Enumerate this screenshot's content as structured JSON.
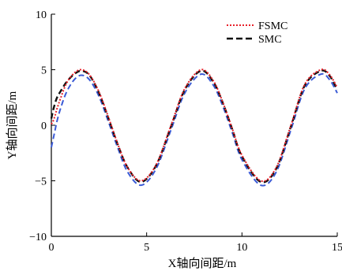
{
  "chart_data": {
    "type": "line",
    "title": "",
    "xlabel": "X轴向间距/m",
    "ylabel": "Y轴向间距/m",
    "xlim": [
      0,
      15
    ],
    "ylim": [
      -10,
      10
    ],
    "xticks": [
      0,
      5,
      10,
      15
    ],
    "yticks": [
      -10,
      -5,
      0,
      5,
      10
    ],
    "xtick_labels": [
      "0",
      "5",
      "10",
      "15"
    ],
    "ytick_labels": [
      "−10",
      "−5",
      "0",
      "5",
      "10"
    ],
    "grid": false,
    "legend_position": "top-right",
    "reference": {
      "function": "sine",
      "amplitude": 5,
      "period": 6.28
    },
    "series": [
      {
        "name": "FSMC",
        "color": "#e8202a",
        "style": "dotted",
        "x": [
          0,
          0.1,
          0.2,
          0.3,
          0.5,
          0.8,
          1.2,
          1.57,
          2.0,
          2.5,
          3.0,
          3.5,
          4.0,
          4.71,
          5.5,
          6.28,
          7.0,
          7.85,
          8.5,
          9.0,
          9.5,
          10.0,
          10.99,
          11.8,
          12.57,
          13.3,
          14.14,
          14.6,
          15.0
        ],
        "y": [
          0.1,
          0.4,
          0.9,
          1.5,
          2.5,
          3.8,
          4.7,
          5.0,
          4.55,
          3.0,
          0.7,
          -1.75,
          -3.8,
          -5.0,
          -3.55,
          0.0,
          3.3,
          5.0,
          4.0,
          2.05,
          -0.35,
          -2.7,
          -5.0,
          -3.8,
          0.0,
          3.7,
          5.0,
          4.55,
          3.4
        ]
      },
      {
        "name": "SMC",
        "color": "#111111",
        "style": "dashed",
        "x": [
          0,
          0.1,
          0.2,
          0.3,
          0.5,
          0.8,
          1.2,
          1.57,
          2.0,
          2.5,
          3.0,
          3.5,
          4.0,
          4.71,
          5.5,
          6.28,
          7.0,
          7.85,
          8.5,
          9.0,
          9.5,
          10.0,
          10.99,
          11.8,
          12.57,
          13.3,
          14.14,
          14.6,
          15.0
        ],
        "y": [
          0.6,
          1.4,
          2.0,
          2.5,
          3.1,
          3.9,
          4.6,
          4.9,
          4.5,
          2.9,
          0.6,
          -1.8,
          -3.8,
          -5.1,
          -3.6,
          -0.1,
          3.2,
          4.9,
          3.9,
          2.0,
          -0.4,
          -2.8,
          -5.1,
          -3.9,
          -0.1,
          3.6,
          4.9,
          4.45,
          3.2
        ]
      },
      {
        "name": "",
        "color": "#3b5bd6",
        "style": "dashed",
        "x": [
          0,
          0.1,
          0.2,
          0.3,
          0.5,
          0.8,
          1.2,
          1.57,
          2.0,
          2.5,
          3.0,
          3.5,
          4.0,
          4.71,
          5.5,
          6.28,
          7.0,
          7.85,
          8.5,
          9.0,
          9.5,
          10.0,
          10.99,
          11.8,
          12.57,
          13.3,
          14.14,
          14.6,
          15.0
        ],
        "y": [
          -2.0,
          -1.2,
          -0.4,
          0.4,
          1.6,
          3.0,
          4.1,
          4.5,
          4.1,
          2.6,
          0.3,
          -2.1,
          -4.2,
          -5.4,
          -3.9,
          -0.4,
          2.9,
          4.6,
          3.6,
          1.7,
          -0.7,
          -3.1,
          -5.4,
          -4.2,
          -0.4,
          3.3,
          4.6,
          4.1,
          2.9
        ]
      }
    ]
  }
}
